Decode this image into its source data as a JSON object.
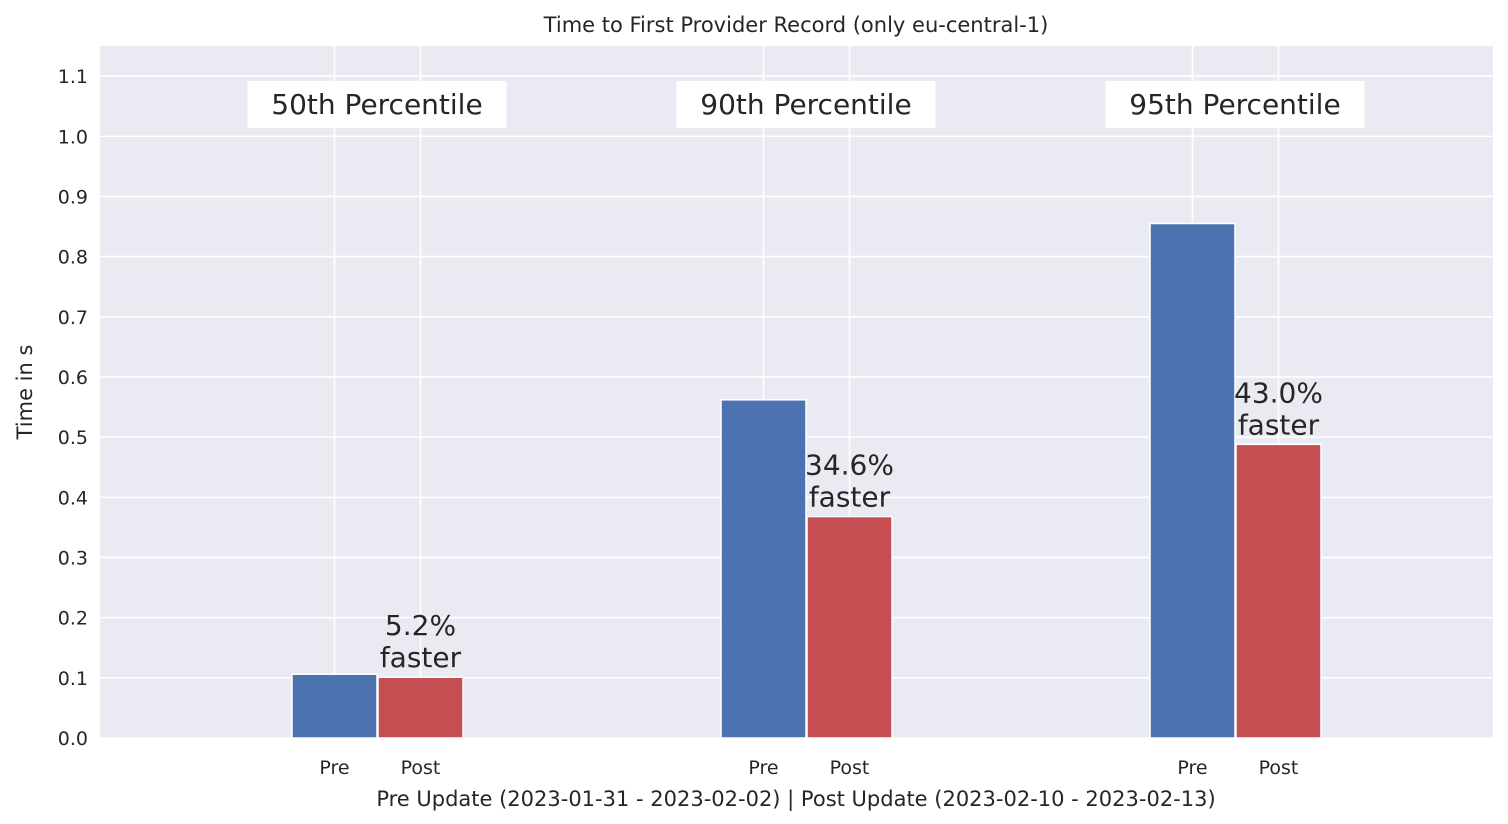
{
  "chart_data": {
    "type": "bar",
    "title": "Time to First Provider Record (only eu-central-1)",
    "xlabel": "Pre Update (2023-01-31 - 2023-02-02) | Post Update  (2023-02-10 - 2023-02-13)",
    "ylabel": "Time in s",
    "ylim": [
      0,
      1.15
    ],
    "yticks": [
      "0.0",
      "0.1",
      "0.2",
      "0.3",
      "0.4",
      "0.5",
      "0.6",
      "0.7",
      "0.8",
      "0.9",
      "1.0",
      "1.1"
    ],
    "grid": true,
    "groups": [
      {
        "label": "50th Percentile",
        "categories": [
          "Pre",
          "Post"
        ],
        "values": [
          0.106,
          0.101
        ],
        "annotation": [
          "5.2%",
          "faster"
        ]
      },
      {
        "label": "90th Percentile",
        "categories": [
          "Pre",
          "Post"
        ],
        "values": [
          0.562,
          0.368
        ],
        "annotation": [
          "34.6%",
          "faster"
        ]
      },
      {
        "label": "95th Percentile",
        "categories": [
          "Pre",
          "Post"
        ],
        "values": [
          0.855,
          0.488
        ],
        "annotation": [
          "43.0%",
          "faster"
        ]
      }
    ],
    "colors": {
      "Pre": "#4c72b0",
      "Post": "#c44e52",
      "background": "#eaeaf2",
      "grid": "#ffffff"
    }
  }
}
